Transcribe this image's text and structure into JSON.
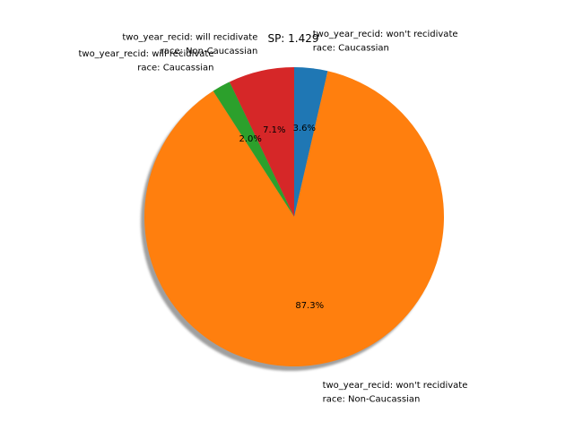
{
  "chart_data": {
    "type": "pie",
    "title": "SP: 1.429",
    "shadow": true,
    "start_angle_deg": 90,
    "direction": "clockwise",
    "slices": [
      {
        "label_lines": [
          "two_year_recid: won't recidivate",
          "race: Caucassian"
        ],
        "value": 3.6,
        "pct_label": "3.6%",
        "color": "#1f77b4"
      },
      {
        "label_lines": [
          "two_year_recid: won't recidivate",
          "race: Non-Caucassian"
        ],
        "value": 87.3,
        "pct_label": "87.3%",
        "color": "#ff7f0e"
      },
      {
        "label_lines": [
          "two_year_recid: will recidivate",
          "race: Caucassian"
        ],
        "value": 2.0,
        "pct_label": "2.0%",
        "color": "#2ca02c"
      },
      {
        "label_lines": [
          "two_year_recid: will recidivate",
          "race: Non-Caucassian"
        ],
        "value": 7.1,
        "pct_label": "7.1%",
        "color": "#d62728"
      }
    ]
  }
}
